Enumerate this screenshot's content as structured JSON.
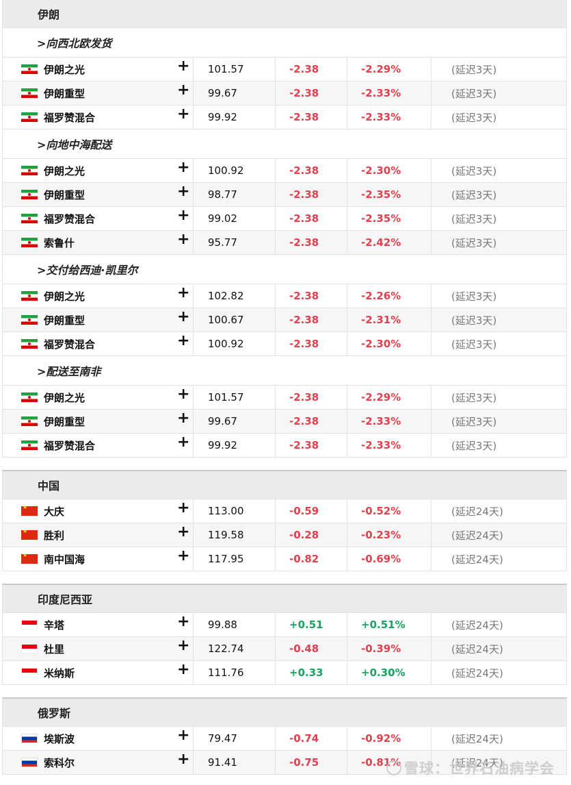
{
  "delay_3": "(延迟3天)",
  "delay_24": "(延迟24天)",
  "regions": [
    {
      "title": "伊朗",
      "groups": [
        {
          "subheader": ">向西北欧发货",
          "rows": [
            {
              "flag": "iran",
              "name": "伊朗之光",
              "price": "101.57",
              "change": "-2.38",
              "pct": "-2.29%",
              "delay": "(延迟3天)",
              "dir": "neg"
            },
            {
              "flag": "iran",
              "name": "伊朗重型",
              "price": "99.67",
              "change": "-2.38",
              "pct": "-2.33%",
              "delay": "(延迟3天)",
              "dir": "neg"
            },
            {
              "flag": "iran",
              "name": "福罗赞混合",
              "price": "99.92",
              "change": "-2.38",
              "pct": "-2.33%",
              "delay": "(延迟3天)",
              "dir": "neg"
            }
          ]
        },
        {
          "subheader": ">向地中海配送",
          "rows": [
            {
              "flag": "iran",
              "name": "伊朗之光",
              "price": "100.92",
              "change": "-2.38",
              "pct": "-2.30%",
              "delay": "(延迟3天)",
              "dir": "neg"
            },
            {
              "flag": "iran",
              "name": "伊朗重型",
              "price": "98.77",
              "change": "-2.38",
              "pct": "-2.35%",
              "delay": "(延迟3天)",
              "dir": "neg"
            },
            {
              "flag": "iran",
              "name": "福罗赞混合",
              "price": "99.02",
              "change": "-2.38",
              "pct": "-2.35%",
              "delay": "(延迟3天)",
              "dir": "neg"
            },
            {
              "flag": "iran",
              "name": "索鲁什",
              "price": "95.77",
              "change": "-2.38",
              "pct": "-2.42%",
              "delay": "(延迟3天)",
              "dir": "neg"
            }
          ]
        },
        {
          "subheader": ">交付给西迪·凯里尔",
          "rows": [
            {
              "flag": "iran",
              "name": "伊朗之光",
              "price": "102.82",
              "change": "-2.38",
              "pct": "-2.26%",
              "delay": "(延迟3天)",
              "dir": "neg"
            },
            {
              "flag": "iran",
              "name": "伊朗重型",
              "price": "100.67",
              "change": "-2.38",
              "pct": "-2.31%",
              "delay": "(延迟3天)",
              "dir": "neg"
            },
            {
              "flag": "iran",
              "name": "福罗赞混合",
              "price": "100.92",
              "change": "-2.38",
              "pct": "-2.30%",
              "delay": "(延迟3天)",
              "dir": "neg"
            }
          ]
        },
        {
          "subheader": ">配送至南非",
          "rows": [
            {
              "flag": "iran",
              "name": "伊朗之光",
              "price": "101.57",
              "change": "-2.38",
              "pct": "-2.29%",
              "delay": "(延迟3天)",
              "dir": "neg"
            },
            {
              "flag": "iran",
              "name": "伊朗重型",
              "price": "99.67",
              "change": "-2.38",
              "pct": "-2.33%",
              "delay": "(延迟3天)",
              "dir": "neg"
            },
            {
              "flag": "iran",
              "name": "福罗赞混合",
              "price": "99.92",
              "change": "-2.38",
              "pct": "-2.33%",
              "delay": "(延迟3天)",
              "dir": "neg"
            }
          ]
        }
      ]
    },
    {
      "title": "中国",
      "groups": [
        {
          "subheader": "",
          "rows": [
            {
              "flag": "china",
              "name": "大庆",
              "price": "113.00",
              "change": "-0.59",
              "pct": "-0.52%",
              "delay": "(延迟24天)",
              "dir": "neg"
            },
            {
              "flag": "china",
              "name": "胜利",
              "price": "119.58",
              "change": "-0.28",
              "pct": "-0.23%",
              "delay": "(延迟24天)",
              "dir": "neg"
            },
            {
              "flag": "china",
              "name": "南中国海",
              "price": "117.95",
              "change": "-0.82",
              "pct": "-0.69%",
              "delay": "(延迟24天)",
              "dir": "neg"
            }
          ]
        }
      ]
    },
    {
      "title": "印度尼西亚",
      "groups": [
        {
          "subheader": "",
          "rows": [
            {
              "flag": "indonesia",
              "name": "辛塔",
              "price": "99.88",
              "change": "+0.51",
              "pct": "+0.51%",
              "delay": "(延迟24天)",
              "dir": "pos"
            },
            {
              "flag": "indonesia",
              "name": "杜里",
              "price": "122.74",
              "change": "-0.48",
              "pct": "-0.39%",
              "delay": "(延迟24天)",
              "dir": "neg"
            },
            {
              "flag": "indonesia",
              "name": "米纳斯",
              "price": "111.76",
              "change": "+0.33",
              "pct": "+0.30%",
              "delay": "(延迟24天)",
              "dir": "pos"
            }
          ]
        }
      ]
    },
    {
      "title": "俄罗斯",
      "groups": [
        {
          "subheader": "",
          "rows": [
            {
              "flag": "russia",
              "name": "埃斯波",
              "price": "79.47",
              "change": "-0.74",
              "pct": "-0.92%",
              "delay": "(延迟24天)",
              "dir": "neg"
            },
            {
              "flag": "russia",
              "name": "索科尔",
              "price": "91.41",
              "change": "-0.75",
              "pct": "-0.81%",
              "delay": "(延迟24天)",
              "dir": "neg"
            }
          ]
        }
      ]
    }
  ],
  "add_symbol": "+",
  "watermark": "雪球：世界石油病学会",
  "colors": {
    "negative": "#e2404d",
    "positive": "#1aa260",
    "header_bg": "#ebebeb",
    "alt_row_bg": "#f6f6f6"
  }
}
